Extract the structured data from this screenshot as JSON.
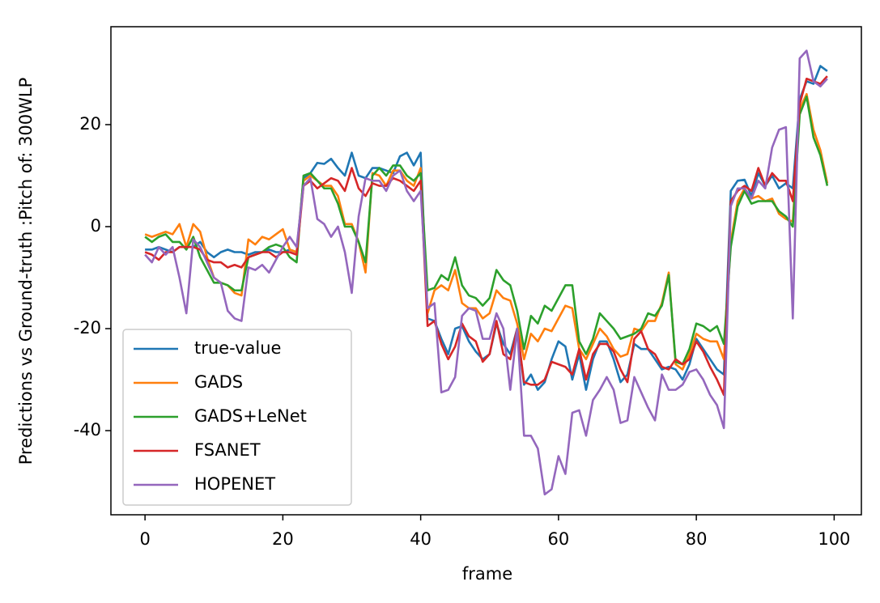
{
  "chart_data": {
    "type": "line",
    "xlabel": "frame",
    "ylabel": "Predictions vs Ground-truth :Pitch of: 300WLP",
    "xlim": [
      -4.95,
      103.95
    ],
    "ylim": [
      -56.5,
      39.2
    ],
    "xticks": [
      0,
      20,
      40,
      60,
      80,
      100
    ],
    "yticks": [
      -40,
      -20,
      0,
      20
    ],
    "legend": "lower left",
    "x": [
      0,
      1,
      2,
      3,
      4,
      5,
      6,
      7,
      8,
      9,
      10,
      11,
      12,
      13,
      14,
      15,
      16,
      17,
      18,
      19,
      20,
      21,
      22,
      23,
      24,
      25,
      26,
      27,
      28,
      29,
      30,
      31,
      32,
      33,
      34,
      35,
      36,
      37,
      38,
      39,
      40,
      41,
      42,
      43,
      44,
      45,
      46,
      47,
      48,
      49,
      50,
      51,
      52,
      53,
      54,
      55,
      56,
      57,
      58,
      59,
      60,
      61,
      62,
      63,
      64,
      65,
      66,
      67,
      68,
      69,
      70,
      71,
      72,
      73,
      74,
      75,
      76,
      77,
      78,
      79,
      80,
      81,
      82,
      83,
      84,
      85,
      86,
      87,
      88,
      89,
      90,
      91,
      92,
      93,
      94,
      95,
      96,
      97,
      98,
      99
    ],
    "series": [
      {
        "name": "true-value",
        "color": "#1f77b4",
        "values": [
          -4.5,
          -4.5,
          -4,
          -4.5,
          -5,
          -4,
          -4,
          -4,
          -3,
          -5,
          -6,
          -5,
          -4.5,
          -5,
          -5,
          -5.5,
          -5,
          -5,
          -4.5,
          -5,
          -5,
          -4.5,
          -5,
          9.5,
          10.5,
          12.5,
          12.3,
          13.3,
          11.5,
          10,
          14.5,
          10,
          9.5,
          11.5,
          11.5,
          11,
          10.5,
          13.8,
          14.5,
          12,
          14.5,
          -18,
          -18.5,
          -22,
          -25,
          -20,
          -19.5,
          -22.5,
          -24.5,
          -26,
          -25,
          -19,
          -23,
          -25,
          -20,
          -31,
          -29,
          -32,
          -30.5,
          -26,
          -22.5,
          -23.5,
          -30,
          -25,
          -32,
          -26,
          -22.5,
          -22.5,
          -26,
          -30.5,
          -29,
          -23,
          -24,
          -24,
          -26,
          -28,
          -27.5,
          -28,
          -30,
          -27,
          -22,
          -24,
          -26,
          -28,
          -29,
          7,
          9,
          9.2,
          6,
          10.5,
          8,
          10,
          7.5,
          8.5,
          7.5,
          25,
          28.5,
          28,
          31.5,
          30.5
        ]
      },
      {
        "name": "GADS",
        "color": "#ff7f0e",
        "values": [
          -1.5,
          -2,
          -1.5,
          -1,
          -1.5,
          0.5,
          -4,
          0.5,
          -1,
          -6,
          -10,
          -11,
          -11.5,
          -13,
          -13.5,
          -2.5,
          -3.5,
          -2,
          -2.5,
          -1.5,
          -0.5,
          -4.5,
          -5,
          9,
          10,
          9,
          8,
          8,
          6,
          0.5,
          0.5,
          -3,
          -9,
          10.5,
          10,
          8,
          11,
          11,
          9,
          8,
          11.5,
          -17,
          -12.5,
          -11.5,
          -12.5,
          -8.5,
          -15,
          -16,
          -16,
          -18,
          -17,
          -12.5,
          -14,
          -14.5,
          -19,
          -26,
          -21,
          -22.5,
          -20,
          -20.5,
          -18,
          -15.5,
          -16,
          -24,
          -26,
          -23,
          -20,
          -21.5,
          -24,
          -25.5,
          -25,
          -20,
          -20.5,
          -18.5,
          -18.5,
          -15,
          -9,
          -27,
          -28,
          -25,
          -21,
          -22,
          -22.5,
          -22.5,
          -26,
          -3,
          5,
          7.5,
          5.5,
          6,
          5,
          5.5,
          2.5,
          1.5,
          1,
          23,
          26,
          19,
          15,
          8.5
        ]
      },
      {
        "name": "GADS+LeNet",
        "color": "#2ca02c",
        "values": [
          -2,
          -3,
          -2,
          -1.5,
          -3,
          -3,
          -4.5,
          -2,
          -6,
          -8.5,
          -11,
          -11,
          -11.5,
          -12.5,
          -12.5,
          -6,
          -5.5,
          -5,
          -4,
          -3.5,
          -4,
          -6,
          -7,
          10,
          10.5,
          9,
          7.5,
          7.5,
          4.5,
          0,
          0,
          -3,
          -7,
          10,
          11.5,
          10,
          12,
          12,
          10,
          9,
          10.5,
          -12.5,
          -12,
          -9.5,
          -10.5,
          -6,
          -11.5,
          -13.5,
          -14,
          -15.5,
          -14,
          -8.5,
          -10.5,
          -11.5,
          -16.5,
          -24,
          -17.5,
          -19,
          -15.5,
          -16.5,
          -14,
          -11.5,
          -11.5,
          -22.5,
          -25,
          -22,
          -17,
          -18.5,
          -20,
          -22,
          -21.5,
          -21,
          -20,
          -17,
          -17.5,
          -15.5,
          -9.5,
          -26.5,
          -27,
          -24,
          -19,
          -19.5,
          -20.5,
          -19.5,
          -23,
          -4,
          4,
          7,
          4.5,
          5,
          5,
          5,
          3,
          2,
          0,
          22,
          25.5,
          17.5,
          14,
          8
        ]
      },
      {
        "name": "FSANET",
        "color": "#d62728",
        "values": [
          -5,
          -5.5,
          -6.5,
          -5,
          -5,
          -4,
          -4,
          -4,
          -4.5,
          -6.5,
          -7,
          -7,
          -8,
          -7.5,
          -8,
          -6,
          -5.5,
          -5,
          -5,
          -6,
          -5,
          -5,
          -5.5,
          8,
          9,
          7.5,
          8.5,
          9.5,
          9,
          7,
          11.5,
          7.5,
          6,
          8.5,
          8,
          8,
          9.5,
          9,
          8,
          7,
          9,
          -19.5,
          -18.5,
          -23,
          -26,
          -23.5,
          -19,
          -21.5,
          -22.5,
          -26.5,
          -25,
          -18.5,
          -25,
          -26,
          -20,
          -30.5,
          -31,
          -31,
          -30,
          -26.5,
          -27,
          -27.5,
          -29,
          -24,
          -30,
          -25,
          -23,
          -23,
          -24.5,
          -28,
          -30.5,
          -22,
          -20.5,
          -24,
          -25,
          -27.5,
          -28,
          -26,
          -27,
          -26,
          -22.5,
          -24.5,
          -27.5,
          -30,
          -33,
          5,
          7,
          8,
          7,
          11.5,
          8,
          10.5,
          9,
          9,
          5,
          24,
          29,
          28.5,
          28,
          29.5
        ]
      },
      {
        "name": "HOPENET",
        "color": "#9467bd",
        "values": [
          -5.5,
          -7,
          -4,
          -5.5,
          -4,
          -10,
          -17,
          -2.5,
          -4,
          -7,
          -10,
          -11,
          -16.5,
          -18,
          -18.5,
          -8,
          -8.5,
          -7.5,
          -9,
          -6.5,
          -4,
          -2,
          -4,
          8,
          9.5,
          1.5,
          0.5,
          -2,
          0,
          -5,
          -13,
          2,
          9.5,
          9,
          9,
          7,
          10,
          11,
          7,
          5,
          7,
          -16,
          -15,
          -32.5,
          -32,
          -29.5,
          -17.5,
          -16,
          -16.5,
          -22,
          -22,
          -17,
          -20,
          -32,
          -20,
          -41,
          -41,
          -43.5,
          -52.5,
          -51.5,
          -45,
          -48.5,
          -36.5,
          -36,
          -41,
          -34,
          -32,
          -29.5,
          -32,
          -38.5,
          -38,
          -29.5,
          -32.5,
          -35.5,
          -38,
          -29,
          -32,
          -32,
          -31,
          -28.5,
          -28,
          -30,
          -33,
          -35,
          -39.5,
          4,
          7.5,
          7.5,
          5.5,
          9,
          7.5,
          15.5,
          19,
          19.5,
          -18,
          33,
          34.5,
          28.5,
          27.5,
          29
        ]
      }
    ]
  }
}
